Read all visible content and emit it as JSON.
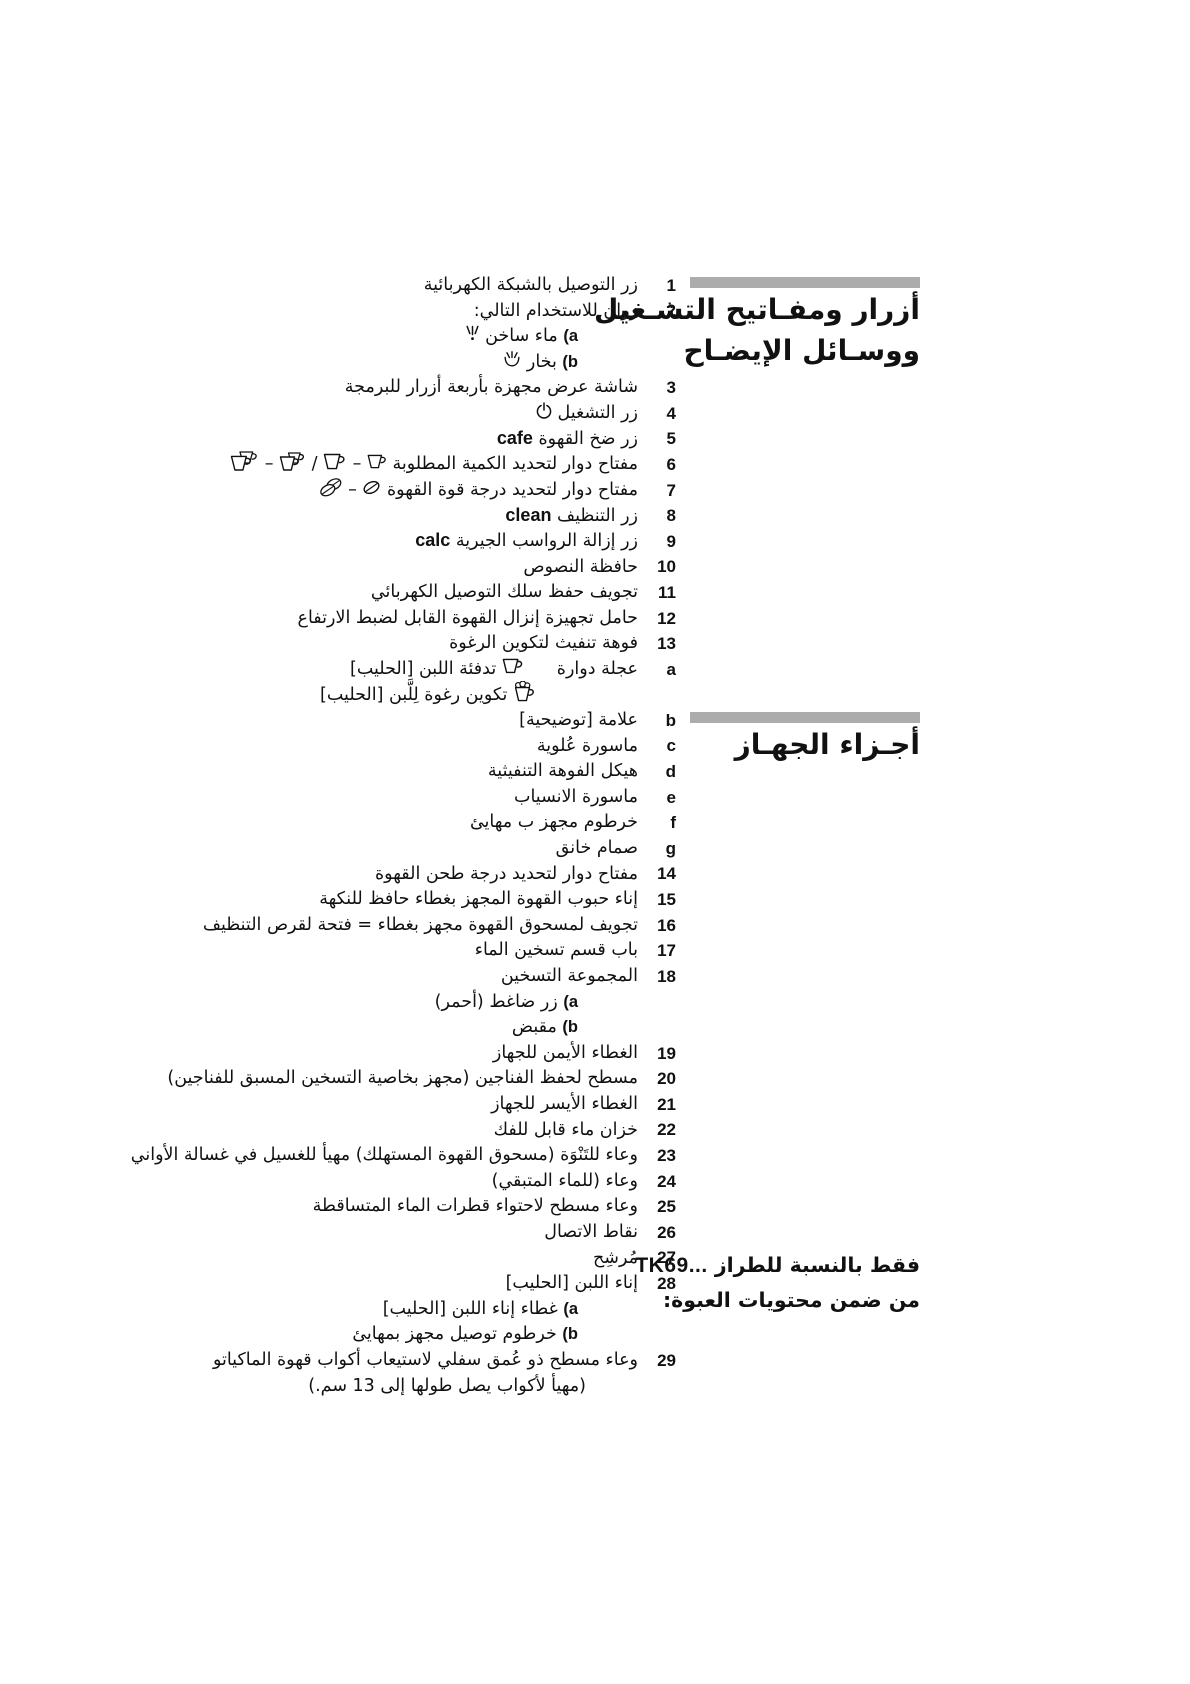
{
  "page": {
    "background": "#ffffff",
    "bar_color": "#acacac",
    "text_color": "#111111"
  },
  "sections": {
    "controls": {
      "line1": "أزرار ومفـاتيح التشـغيل",
      "line2": "ووسـائل الإيضـاح"
    },
    "parts": {
      "line1": "أجـزاء الجهـاز"
    }
  },
  "tk69": {
    "prefix": "فقط بالنسبة للطراز ",
    "model": "TK69...",
    "line2": "من ضمن محتويات العبوة:"
  },
  "list": {
    "items": [
      {
        "label": "1",
        "segments": [
          {
            "t": "زر التوصيل بالشبكة الكهربائية"
          }
        ]
      },
      {
        "label": "2",
        "segments": [
          {
            "t": "زران للاستخدام التالي:"
          }
        ]
      },
      {
        "label": "",
        "indent": 60,
        "segments": [
          {
            "sub": "a"
          },
          {
            "t": " ماء ساخن "
          },
          {
            "icon": "hot-water"
          }
        ]
      },
      {
        "label": "",
        "indent": 60,
        "segments": [
          {
            "sub": "b"
          },
          {
            "t": " بخار "
          },
          {
            "icon": "steam"
          }
        ]
      },
      {
        "label": "3",
        "segments": [
          {
            "t": "شاشة عرض مجهزة بأربعة أزرار للبرمجة"
          }
        ]
      },
      {
        "label": "4",
        "segments": [
          {
            "t": "زر التشغيل "
          },
          {
            "icon": "power"
          }
        ]
      },
      {
        "label": "5",
        "segments": [
          {
            "t": "زر ضخ القهوة "
          },
          {
            "latin": "cafe"
          }
        ]
      },
      {
        "label": "6",
        "segments": [
          {
            "t": "مفتاح دوار لتحديد الكمية المطلوبة "
          },
          {
            "icon": "cup-small"
          },
          {
            "t": " – "
          },
          {
            "icon": "cup-large"
          },
          {
            "t": " / "
          },
          {
            "icon": "cups-double-small"
          },
          {
            "t": " – "
          },
          {
            "icon": "cups-double-large"
          }
        ]
      },
      {
        "label": "7",
        "segments": [
          {
            "t": "مفتاح دوار لتحديد درجة قوة القهوة "
          },
          {
            "icon": "bean-single"
          },
          {
            "t": " – "
          },
          {
            "icon": "bean-double"
          }
        ]
      },
      {
        "label": "8",
        "segments": [
          {
            "t": "زر التنظيف "
          },
          {
            "latin": "clean"
          }
        ]
      },
      {
        "label": "9",
        "segments": [
          {
            "t": "زر إزالة الرواسب الجيرية "
          },
          {
            "latin": "calc"
          }
        ]
      },
      {
        "label": "10",
        "segments": [
          {
            "t": "حافظة النصوص"
          }
        ]
      },
      {
        "label": "11",
        "segments": [
          {
            "t": "تجويف حفظ سلك التوصيل الكهربائي"
          }
        ]
      },
      {
        "label": "12",
        "segments": [
          {
            "t": "حامل تجهيزة إنزال القهوة القابل لضبط الارتفاع"
          }
        ]
      },
      {
        "label": "13",
        "segments": [
          {
            "t": "فوهة تنفيث لتكوين الرغوة"
          }
        ]
      },
      {
        "label": "a",
        "segments": [
          {
            "t": "عجلة دوارة"
          },
          {
            "gap": 32
          },
          {
            "icon": "milk-warm-cup"
          },
          {
            "t": " تدفئة اللبن [الحليب]"
          }
        ]
      },
      {
        "label": "",
        "indent": 100,
        "segments": [
          {
            "icon": "milk-froth-cup"
          },
          {
            "t": " تكوين رغوة لِلَّبن [الحليب]"
          }
        ]
      },
      {
        "label": "b",
        "segments": [
          {
            "t": "علامة [توضيحية]"
          }
        ]
      },
      {
        "label": "c",
        "segments": [
          {
            "t": "ماسورة عُلوية"
          }
        ]
      },
      {
        "label": "d",
        "segments": [
          {
            "t": "هيكل الفوهة التنفيثية"
          }
        ]
      },
      {
        "label": "e",
        "segments": [
          {
            "t": "ماسورة الانسياب"
          }
        ]
      },
      {
        "label": "f",
        "segments": [
          {
            "t": "خرطوم مجهز ب مهايئ"
          }
        ]
      },
      {
        "label": "g",
        "segments": [
          {
            "t": "صمام خانق"
          }
        ]
      },
      {
        "label": "14",
        "segments": [
          {
            "t": "مفتاح دوار لتحديد درجة طحن القهوة"
          }
        ]
      },
      {
        "label": "15",
        "segments": [
          {
            "t": "إناء حبوب القهوة المجهز بغطاء حافظ للنكهة"
          }
        ]
      },
      {
        "label": "16",
        "segments": [
          {
            "t": "تجويف لمسحوق القهوة مجهز بغطاء = فتحة لقرص التنظيف"
          }
        ]
      },
      {
        "label": "17",
        "segments": [
          {
            "t": "باب قسم تسخين الماء"
          }
        ]
      },
      {
        "label": "18",
        "segments": [
          {
            "t": "المجموعة التسخين"
          }
        ]
      },
      {
        "label": "",
        "indent": 60,
        "segments": [
          {
            "sub": "a"
          },
          {
            "t": " زر ضاغط (أحمر)"
          }
        ]
      },
      {
        "label": "",
        "indent": 60,
        "segments": [
          {
            "sub": "b"
          },
          {
            "t": " مقبض"
          }
        ]
      },
      {
        "label": "19",
        "segments": [
          {
            "t": "الغطاء الأيمن للجهاز"
          }
        ]
      },
      {
        "label": "20",
        "segments": [
          {
            "t": "مسطح لحفظ الفناجين (مجهز بخاصية التسخين المسبق للفناجين)"
          }
        ]
      },
      {
        "label": "21",
        "segments": [
          {
            "t": "الغطاء الأيسر للجهاز"
          }
        ]
      },
      {
        "label": "22",
        "segments": [
          {
            "t": "خزان ماء قابل للفك"
          }
        ]
      },
      {
        "label": "23",
        "segments": [
          {
            "t": "وعاء للتَنْوَة (مسحوق القهوة المستهلك) مهيأ للغسيل في غسالة الأواني"
          }
        ]
      },
      {
        "label": "24",
        "segments": [
          {
            "t": "وعاء (للماء المتبقي)"
          }
        ]
      },
      {
        "label": "25",
        "segments": [
          {
            "t": "وعاء مسطح لاحتواء قطرات الماء المتساقطة"
          }
        ]
      },
      {
        "label": "26",
        "segments": [
          {
            "t": "نقاط الاتصال"
          }
        ]
      },
      {
        "label": "27",
        "segments": [
          {
            "t": "مُرشِح"
          }
        ]
      },
      {
        "label": "28",
        "segments": [
          {
            "t": "إناء اللبن [الحليب]"
          }
        ]
      },
      {
        "label": "",
        "indent": 60,
        "segments": [
          {
            "sub": "a"
          },
          {
            "t": " غطاء إناء اللبن [الحليب]"
          }
        ]
      },
      {
        "label": "",
        "indent": 60,
        "segments": [
          {
            "sub": "b"
          },
          {
            "t": " خرطوم توصيل مجهز بمهايئ"
          }
        ]
      },
      {
        "label": "29",
        "segments": [
          {
            "t": "وعاء مسطح ذو عُمق سفلي لاستيعاب أكواب قهوة الماكياتو"
          }
        ]
      },
      {
        "label": "",
        "indent": 52,
        "segments": [
          {
            "t": "(مهيأ لأكواب يصل طولها إلى 13 سم.)"
          }
        ]
      }
    ]
  }
}
